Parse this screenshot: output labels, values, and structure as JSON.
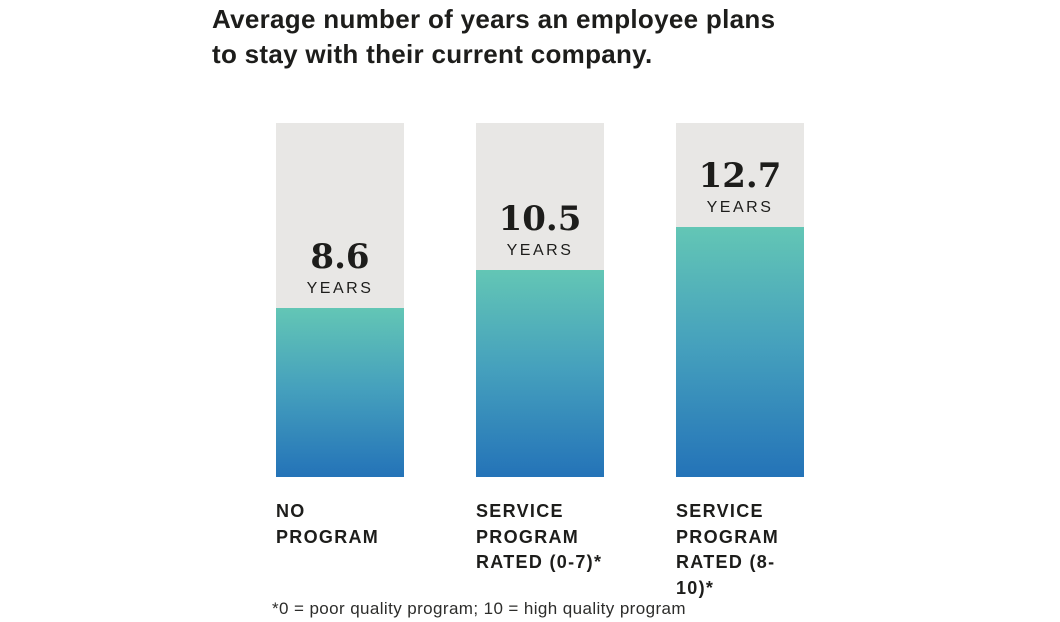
{
  "chart_data": {
    "type": "bar",
    "title": "Average number of years an employee plans\nto stay with their current company.",
    "categories": [
      "NO PROGRAM",
      "SERVICE\nPROGRAM\nRATED (0-7)*",
      "SERVICE\nPROGRAM\nRATED (8-10)*"
    ],
    "values": [
      8.6,
      10.5,
      12.7
    ],
    "value_labels": [
      "8.6",
      "10.5",
      "12.7"
    ],
    "unit_label": "YEARS",
    "xlabel": "",
    "ylabel": "",
    "ylim": [
      0,
      18
    ],
    "grid": false,
    "legend": "none",
    "footnote": "*0 = poor quality program; 10 = high quality program",
    "colors": {
      "track": "#e8e7e5",
      "bar_gradient_top": "#63c6b5",
      "bar_gradient_mid": "#45a0bd",
      "bar_gradient_bottom": "#2473b8",
      "text": "#1d1d1b",
      "footnote_text": "#2d2d2b"
    }
  }
}
